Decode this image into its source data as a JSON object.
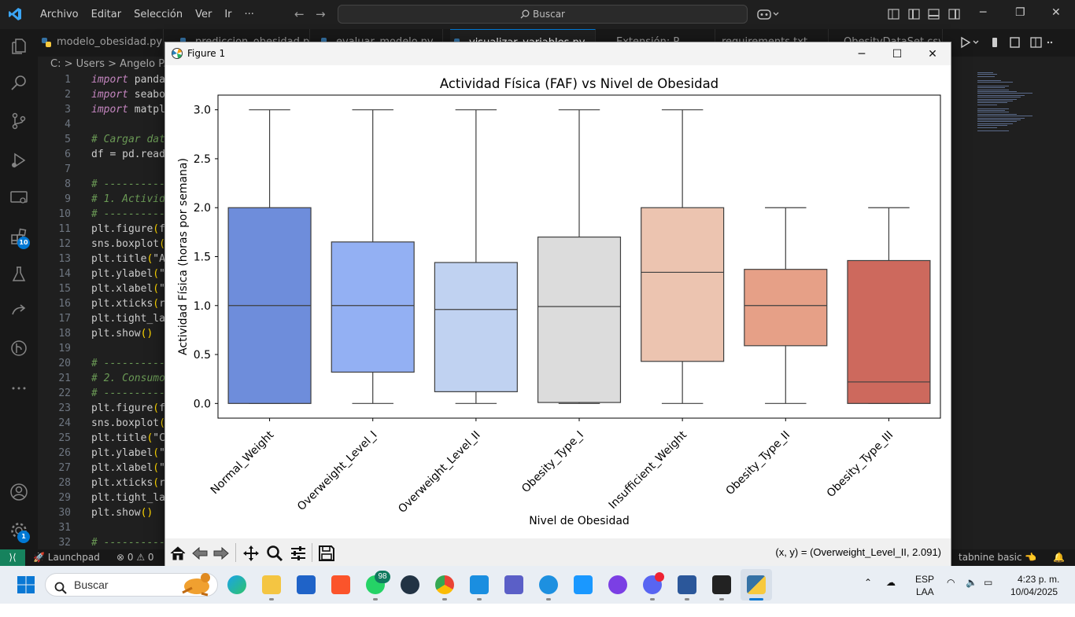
{
  "vscode": {
    "menu": [
      "Archivo",
      "Editar",
      "Selección",
      "Ver",
      "Ir",
      "···"
    ],
    "search": "Buscar",
    "tabs": [
      "modelo_obesidad.py",
      "prediccion_obesidad.py",
      "evaluar_modelo.py",
      "visualizar_variables.py",
      "Extensión: P...",
      "requirements.txt",
      "ObesityDataSet.csv"
    ],
    "breadcrumb": "C: > Users > Angelo P. Co",
    "badge_extensions": "10",
    "badge_accounts": "1",
    "code_lines": [
      {
        "n": "1",
        "text": "import panda"
      },
      {
        "n": "2",
        "text": "import seabo"
      },
      {
        "n": "3",
        "text": "import matpl"
      },
      {
        "n": "4",
        "text": ""
      },
      {
        "n": "5",
        "text": "# Cargar dat"
      },
      {
        "n": "6",
        "text": "df = pd.read"
      },
      {
        "n": "7",
        "text": ""
      },
      {
        "n": "8",
        "text": "# ----------"
      },
      {
        "n": "9",
        "text": "# 1. Activid"
      },
      {
        "n": "10",
        "text": "# ----------"
      },
      {
        "n": "11",
        "text": "plt.figure(f"
      },
      {
        "n": "12",
        "text": "sns.boxplot("
      },
      {
        "n": "13",
        "text": "plt.title(\"A"
      },
      {
        "n": "14",
        "text": "plt.ylabel(\""
      },
      {
        "n": "15",
        "text": "plt.xlabel(\""
      },
      {
        "n": "16",
        "text": "plt.xticks(r"
      },
      {
        "n": "17",
        "text": "plt.tight_la"
      },
      {
        "n": "18",
        "text": "plt.show()"
      },
      {
        "n": "19",
        "text": ""
      },
      {
        "n": "20",
        "text": "# ----------"
      },
      {
        "n": "21",
        "text": "# 2. Consumo"
      },
      {
        "n": "22",
        "text": "# ----------"
      },
      {
        "n": "23",
        "text": "plt.figure(f"
      },
      {
        "n": "24",
        "text": "sns.boxplot("
      },
      {
        "n": "25",
        "text": "plt.title(\"C"
      },
      {
        "n": "26",
        "text": "plt.ylabel(\""
      },
      {
        "n": "27",
        "text": "plt.xlabel(\""
      },
      {
        "n": "28",
        "text": "plt.xticks(r"
      },
      {
        "n": "29",
        "text": "plt.tight_la"
      },
      {
        "n": "30",
        "text": "plt.show()"
      },
      {
        "n": "31",
        "text": ""
      },
      {
        "n": "32",
        "text": "# ----------"
      }
    ],
    "status": {
      "launchpad": "Launchpad",
      "problems": "⊗ 0 ⚠ 0",
      "tabnine": "tabnine basic"
    }
  },
  "figure": {
    "window_title": "Figure 1",
    "coord_readout": "(x, y) = (Overweight_Level_II, 2.091)"
  },
  "chart_data": {
    "type": "boxplot",
    "title": "Actividad Física (FAF) vs Nivel de Obesidad",
    "xlabel": "Nivel de Obesidad",
    "ylabel": "Actividad Física (horas por semana)",
    "ylim": [
      -0.15,
      3.15
    ],
    "yticks": [
      0.0,
      0.5,
      1.0,
      1.5,
      2.0,
      2.5,
      3.0
    ],
    "ytick_labels": [
      "0.0",
      "0.5",
      "1.0",
      "1.5",
      "2.0",
      "2.5",
      "3.0"
    ],
    "grid": false,
    "categories": [
      "Normal_Weight",
      "Overweight_Level_I",
      "Overweight_Level_II",
      "Obesity_Type_I",
      "Insufficient_Weight",
      "Obesity_Type_II",
      "Obesity_Type_III"
    ],
    "boxes": [
      {
        "min": 0.0,
        "q1": 0.0,
        "median": 1.0,
        "q3": 2.0,
        "max": 3.0,
        "color": "#6e8ddb"
      },
      {
        "min": 0.0,
        "q1": 0.32,
        "median": 1.0,
        "q3": 1.65,
        "max": 3.0,
        "color": "#93b0f3"
      },
      {
        "min": 0.0,
        "q1": 0.12,
        "median": 0.96,
        "q3": 1.44,
        "max": 3.0,
        "color": "#c0d2f1"
      },
      {
        "min": 0.0,
        "q1": 0.01,
        "median": 0.99,
        "q3": 1.7,
        "max": 3.0,
        "color": "#dcdcdc"
      },
      {
        "min": 0.0,
        "q1": 0.43,
        "median": 1.34,
        "q3": 2.0,
        "max": 3.0,
        "color": "#ecc4b0"
      },
      {
        "min": 0.0,
        "q1": 0.59,
        "median": 1.0,
        "q3": 1.37,
        "max": 2.0,
        "color": "#e6a087"
      },
      {
        "min": 0.0,
        "q1": 0.0,
        "median": 0.22,
        "q3": 1.46,
        "max": 2.0,
        "color": "#cd695d"
      }
    ]
  },
  "taskbar": {
    "search": "Buscar",
    "whatsapp_badge": "98",
    "lang_line1": "ESP",
    "lang_line2": "LAA",
    "time": "4:23 p. m.",
    "date": "10/04/2025"
  }
}
